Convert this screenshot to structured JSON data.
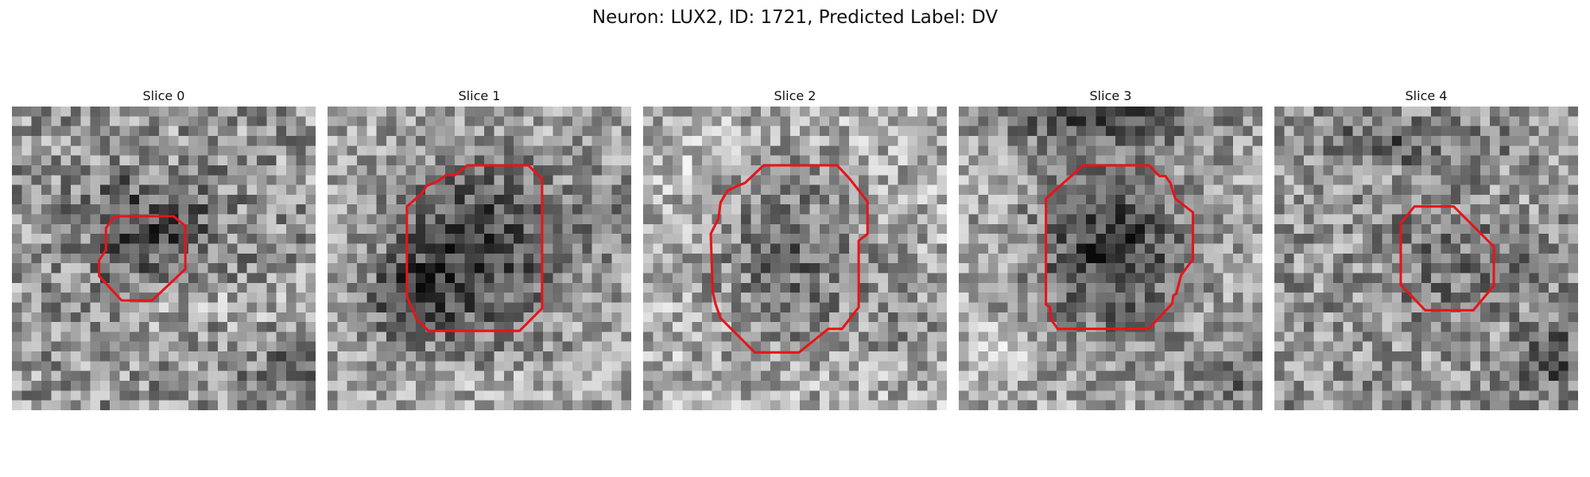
{
  "title": "Neuron: LUX2, ID: 1721, Predicted Label: DV",
  "colors": {
    "contour": "#e8141a",
    "background": "#ffffff",
    "colormap": "gray"
  },
  "slices": [
    {
      "title": "Slice 0"
    },
    {
      "title": "Slice 1"
    },
    {
      "title": "Slice 2"
    },
    {
      "title": "Slice 3"
    },
    {
      "title": "Slice 4"
    }
  ]
}
